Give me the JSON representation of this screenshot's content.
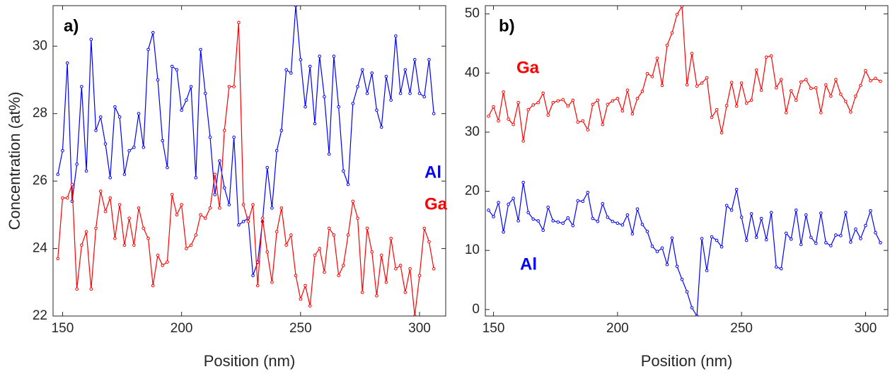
{
  "chart_data": [
    {
      "type": "line",
      "y_label": "Concentration (at%)",
      "x_label": "Position (nm)",
      "annotations": [
        {
          "text": "a)",
          "color": "#000000"
        },
        {
          "text": "Al",
          "color": "#0000ff"
        },
        {
          "text": "Ga",
          "color": "#ff0000"
        }
      ],
      "x": [
        148,
        150,
        152,
        154,
        156,
        158,
        160,
        162,
        164,
        166,
        168,
        170,
        172,
        174,
        176,
        178,
        180,
        182,
        184,
        186,
        188,
        190,
        192,
        194,
        196,
        198,
        200,
        202,
        204,
        206,
        208,
        210,
        212,
        214,
        216,
        218,
        220,
        222,
        224,
        226,
        228,
        230,
        232,
        234,
        236,
        238,
        240,
        242,
        244,
        246,
        248,
        250,
        252,
        254,
        256,
        258,
        260,
        262,
        264,
        266,
        268,
        270,
        272,
        274,
        276,
        278,
        280,
        282,
        284,
        286,
        288,
        290,
        292,
        294,
        296,
        298,
        300,
        302,
        304,
        306
      ],
      "xlim": [
        146,
        311
      ],
      "xticks": [
        150,
        200,
        250,
        300
      ],
      "ylim": [
        22,
        31.2
      ],
      "yticks": [
        22,
        24,
        26,
        28,
        30
      ],
      "series": [
        {
          "name": "Al",
          "color": "#0000ff",
          "values": [
            26.2,
            26.9,
            29.5,
            25.4,
            26.5,
            28.8,
            26.3,
            30.2,
            27.5,
            27.9,
            27.1,
            26.1,
            28.2,
            27.9,
            26.2,
            26.9,
            27.0,
            28.0,
            27.0,
            29.9,
            30.4,
            29.0,
            27.2,
            26.4,
            29.4,
            29.3,
            28.1,
            28.4,
            28.8,
            26.1,
            29.9,
            28.6,
            27.3,
            25.6,
            26.6,
            25.8,
            25.3,
            27.3,
            24.7,
            24.8,
            24.9,
            23.2,
            23.6,
            24.8,
            26.4,
            25.2,
            26.9,
            27.5,
            29.3,
            29.2,
            31.2,
            29.6,
            28.2,
            29.4,
            27.7,
            29.7,
            28.5,
            26.8,
            29.7,
            28.2,
            26.3,
            25.9,
            28.3,
            28.8,
            29.3,
            28.6,
            29.2,
            28.1,
            27.6,
            29.1,
            28.4,
            30.3,
            28.6,
            29.3,
            28.6,
            29.6,
            28.6,
            28.5,
            29.6,
            28.0
          ]
        },
        {
          "name": "Ga",
          "color": "#ff0000",
          "values": [
            23.7,
            25.5,
            25.5,
            25.9,
            22.8,
            24.1,
            24.5,
            22.8,
            24.6,
            25.7,
            25.1,
            25.5,
            24.3,
            25.3,
            24.1,
            24.9,
            24.1,
            25.2,
            24.6,
            24.3,
            22.9,
            23.8,
            23.5,
            23.6,
            25.6,
            25.0,
            25.3,
            24.0,
            24.1,
            24.4,
            25.0,
            24.9,
            25.2,
            26.2,
            25.2,
            27.5,
            28.8,
            28.8,
            30.7,
            25.3,
            24.8,
            25.3,
            22.9,
            24.9,
            23.9,
            23.0,
            24.5,
            25.2,
            24.1,
            24.4,
            23.2,
            22.5,
            22.9,
            22.3,
            23.8,
            24.0,
            23.3,
            24.6,
            24.4,
            23.2,
            23.5,
            24.4,
            25.4,
            24.9,
            22.7,
            24.6,
            23.9,
            22.6,
            23.8,
            23.0,
            24.3,
            23.4,
            23.5,
            22.7,
            23.4,
            22.0,
            23.2,
            24.6,
            24.2,
            23.4
          ]
        }
      ]
    },
    {
      "type": "line",
      "x_label": "Position (nm)",
      "annotations": [
        {
          "text": "b)",
          "color": "#000000"
        },
        {
          "text": "Ga",
          "color": "#ff0000"
        },
        {
          "text": "Al",
          "color": "#0000ff"
        }
      ],
      "x": [
        148,
        150,
        152,
        154,
        156,
        158,
        160,
        162,
        164,
        166,
        168,
        170,
        172,
        174,
        176,
        178,
        180,
        182,
        184,
        186,
        188,
        190,
        192,
        194,
        196,
        198,
        200,
        202,
        204,
        206,
        208,
        210,
        212,
        214,
        216,
        218,
        220,
        222,
        224,
        226,
        228,
        230,
        232,
        234,
        236,
        238,
        240,
        242,
        244,
        246,
        248,
        250,
        252,
        254,
        256,
        258,
        260,
        262,
        264,
        266,
        268,
        270,
        272,
        274,
        276,
        278,
        280,
        282,
        284,
        286,
        288,
        290,
        292,
        294,
        296,
        298,
        300,
        302,
        304,
        306
      ],
      "xlim": [
        146.7,
        309
      ],
      "xticks": [
        150,
        200,
        250,
        300
      ],
      "ylim": [
        -1.1,
        51.4
      ],
      "yticks": [
        0,
        10,
        20,
        30,
        40,
        50
      ],
      "series": [
        {
          "name": "Ga",
          "color": "#ff0000",
          "values": [
            32.7,
            34.3,
            31.9,
            36.8,
            32.2,
            31.3,
            35.0,
            28.5,
            33.8,
            34.6,
            35.0,
            36.6,
            32.9,
            35.0,
            35.3,
            35.5,
            34.4,
            35.4,
            31.7,
            31.9,
            30.4,
            34.7,
            35.4,
            31.3,
            34.7,
            35.3,
            35.7,
            33.6,
            37.1,
            33.1,
            35.7,
            36.9,
            39.9,
            39.4,
            42.5,
            37.9,
            44.7,
            46.8,
            49.9,
            51.3,
            38.0,
            43.3,
            37.8,
            38.3,
            39.2,
            32.5,
            33.8,
            29.9,
            34.5,
            38.4,
            34.4,
            38.3,
            34.9,
            35.4,
            40.5,
            37.1,
            42.7,
            42.9,
            37.5,
            38.9,
            33.3,
            37.0,
            35.4,
            38.5,
            38.9,
            37.4,
            37.5,
            33.3,
            38.0,
            36.1,
            38.9,
            36.4,
            35.2,
            33.4,
            36.1,
            37.9,
            40.4,
            38.7,
            39.1,
            38.6
          ]
        },
        {
          "name": "Al",
          "color": "#0000ff",
          "values": [
            16.8,
            15.7,
            18.1,
            13.1,
            17.8,
            18.8,
            15.0,
            21.5,
            16.4,
            15.3,
            15.0,
            13.4,
            17.3,
            15.0,
            14.8,
            14.6,
            15.5,
            14.2,
            18.4,
            18.3,
            19.8,
            15.4,
            14.9,
            17.9,
            15.6,
            14.9,
            14.6,
            14.3,
            16.0,
            12.8,
            17.0,
            14.4,
            13.2,
            10.7,
            9.8,
            10.4,
            7.6,
            12.1,
            7.3,
            5.1,
            3.0,
            0.3,
            -1.1,
            12.0,
            6.6,
            12.3,
            11.7,
            10.6,
            17.6,
            16.8,
            20.3,
            15.6,
            11.7,
            16.2,
            12.2,
            15.4,
            11.8,
            16.4,
            7.2,
            6.9,
            12.9,
            11.9,
            16.8,
            11.0,
            16.0,
            12.2,
            11.2,
            16.3,
            11.3,
            10.8,
            12.6,
            12.5,
            16.4,
            11.4,
            13.6,
            12.0,
            14.2,
            16.7,
            13.0,
            11.3
          ]
        }
      ]
    }
  ]
}
